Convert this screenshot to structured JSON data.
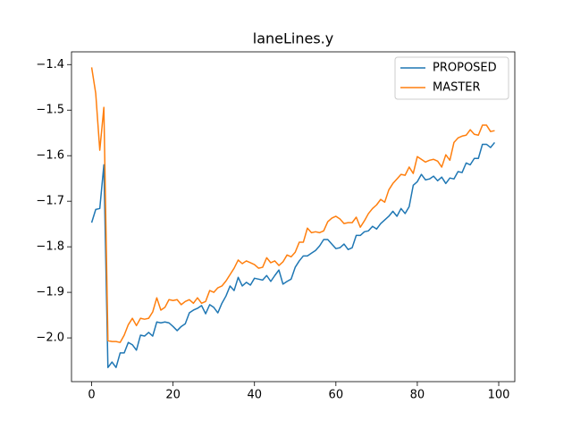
{
  "chart_data": {
    "type": "line",
    "title": "laneLines.y",
    "x": [
      0,
      1,
      2,
      3,
      4,
      5,
      6,
      7,
      8,
      9,
      10,
      11,
      12,
      13,
      14,
      15,
      16,
      17,
      18,
      19,
      20,
      21,
      22,
      23,
      24,
      25,
      26,
      27,
      28,
      29,
      30,
      31,
      32,
      33,
      34,
      35,
      36,
      37,
      38,
      39,
      40,
      41,
      42,
      43,
      44,
      45,
      46,
      47,
      48,
      49,
      50,
      51,
      52,
      53,
      54,
      55,
      56,
      57,
      58,
      59,
      60,
      61,
      62,
      63,
      64,
      65,
      66,
      67,
      68,
      69,
      70,
      71,
      72,
      73,
      74,
      75,
      76,
      77,
      78,
      79,
      80,
      81,
      82,
      83,
      84,
      85,
      86,
      87,
      88,
      89,
      90,
      91,
      92,
      93,
      94,
      95,
      96,
      97,
      98,
      99
    ],
    "series": [
      {
        "name": "PROPOSED",
        "color": "#1f77b4",
        "values": [
          -1.747,
          -1.718,
          -1.716,
          -1.62,
          -2.065,
          -2.053,
          -2.065,
          -2.033,
          -2.033,
          -2.01,
          -2.015,
          -2.027,
          -1.994,
          -1.996,
          -1.988,
          -1.996,
          -1.965,
          -1.967,
          -1.965,
          -1.967,
          -1.975,
          -1.984,
          -1.975,
          -1.969,
          -1.945,
          -1.939,
          -1.935,
          -1.929,
          -1.947,
          -1.927,
          -1.933,
          -1.945,
          -1.924,
          -1.908,
          -1.886,
          -1.896,
          -1.867,
          -1.886,
          -1.878,
          -1.884,
          -1.869,
          -1.871,
          -1.873,
          -1.863,
          -1.876,
          -1.863,
          -1.851,
          -1.882,
          -1.876,
          -1.871,
          -1.845,
          -1.831,
          -1.82,
          -1.82,
          -1.814,
          -1.808,
          -1.798,
          -1.784,
          -1.784,
          -1.794,
          -1.804,
          -1.802,
          -1.794,
          -1.806,
          -1.802,
          -1.775,
          -1.775,
          -1.767,
          -1.765,
          -1.755,
          -1.761,
          -1.749,
          -1.741,
          -1.733,
          -1.722,
          -1.733,
          -1.716,
          -1.727,
          -1.712,
          -1.665,
          -1.657,
          -1.641,
          -1.653,
          -1.651,
          -1.645,
          -1.655,
          -1.647,
          -1.661,
          -1.649,
          -1.651,
          -1.635,
          -1.637,
          -1.616,
          -1.62,
          -1.606,
          -1.606,
          -1.575,
          -1.575,
          -1.582,
          -1.571
        ]
      },
      {
        "name": "MASTER",
        "color": "#ff7f0e",
        "values": [
          -1.406,
          -1.463,
          -1.588,
          -1.494,
          -2.006,
          -2.008,
          -2.008,
          -2.01,
          -1.994,
          -1.971,
          -1.957,
          -1.973,
          -1.957,
          -1.959,
          -1.957,
          -1.943,
          -1.912,
          -1.939,
          -1.933,
          -1.916,
          -1.918,
          -1.916,
          -1.927,
          -1.92,
          -1.916,
          -1.924,
          -1.912,
          -1.924,
          -1.92,
          -1.896,
          -1.9,
          -1.89,
          -1.886,
          -1.875,
          -1.861,
          -1.847,
          -1.829,
          -1.837,
          -1.831,
          -1.835,
          -1.839,
          -1.847,
          -1.845,
          -1.824,
          -1.835,
          -1.831,
          -1.841,
          -1.833,
          -1.818,
          -1.822,
          -1.812,
          -1.79,
          -1.79,
          -1.759,
          -1.769,
          -1.767,
          -1.769,
          -1.765,
          -1.745,
          -1.737,
          -1.733,
          -1.739,
          -1.749,
          -1.747,
          -1.747,
          -1.735,
          -1.757,
          -1.743,
          -1.727,
          -1.716,
          -1.708,
          -1.696,
          -1.702,
          -1.675,
          -1.661,
          -1.651,
          -1.641,
          -1.643,
          -1.625,
          -1.639,
          -1.602,
          -1.608,
          -1.614,
          -1.61,
          -1.608,
          -1.612,
          -1.625,
          -1.598,
          -1.61,
          -1.571,
          -1.561,
          -1.557,
          -1.555,
          -1.543,
          -1.553,
          -1.555,
          -1.533,
          -1.533,
          -1.547,
          -1.545
        ]
      }
    ],
    "xlim": [
      -4.95,
      103.95
    ],
    "xticks": [
      0,
      20,
      40,
      60,
      80,
      100
    ],
    "ylim": [
      -2.096,
      -1.372
    ],
    "yticks": [
      {
        "value": -2.0,
        "label": "−2.0"
      },
      {
        "value": -1.9,
        "label": "−1.9"
      },
      {
        "value": -1.8,
        "label": "−1.8"
      },
      {
        "value": -1.7,
        "label": "−1.7"
      },
      {
        "value": -1.6,
        "label": "−1.6"
      },
      {
        "value": -1.5,
        "label": "−1.5"
      },
      {
        "value": -1.4,
        "label": "−1.4"
      }
    ],
    "legend": "upper right"
  }
}
